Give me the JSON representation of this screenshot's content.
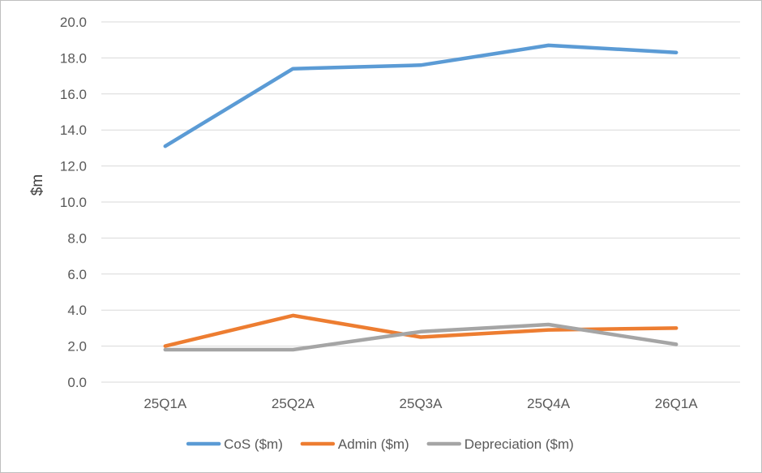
{
  "chart_data": {
    "type": "line",
    "title": "",
    "xlabel": "",
    "ylabel": "$m",
    "ylim": [
      0,
      20
    ],
    "y_ticks": [
      "0.0",
      "2.0",
      "4.0",
      "6.0",
      "8.0",
      "10.0",
      "12.0",
      "14.0",
      "16.0",
      "18.0",
      "20.0"
    ],
    "categories": [
      "25Q1A",
      "25Q2A",
      "25Q3A",
      "25Q4A",
      "26Q1A"
    ],
    "grid": "horizontal",
    "legend_position": "bottom",
    "series": [
      {
        "name": "CoS ($m)",
        "color": "#5b9bd5",
        "values": [
          13.1,
          17.4,
          17.6,
          18.7,
          18.3
        ]
      },
      {
        "name": "Admin ($m)",
        "color": "#ed7d31",
        "values": [
          2.0,
          3.7,
          2.5,
          2.9,
          3.0
        ]
      },
      {
        "name": "Depreciation ($m)",
        "color": "#a5a5a5",
        "values": [
          1.8,
          1.8,
          2.8,
          3.2,
          2.1
        ]
      }
    ]
  }
}
